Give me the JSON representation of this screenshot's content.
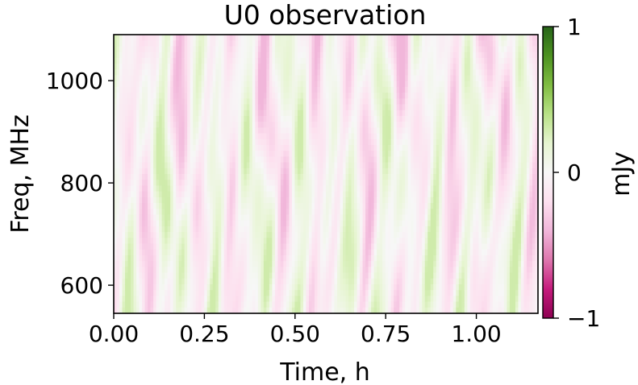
{
  "chart_data": {
    "type": "heatmap",
    "title": "U0 observation",
    "xlabel": "Time, h",
    "ylabel": "Freq, MHz",
    "xlim": [
      0.0,
      1.17
    ],
    "ylim": [
      545,
      1090
    ],
    "x_ticks": [
      0.0,
      0.25,
      0.5,
      0.75,
      1.0
    ],
    "x_tick_labels": [
      "0.00",
      "0.25",
      "0.50",
      "0.75",
      "1.00"
    ],
    "y_ticks": [
      600,
      800,
      1000
    ],
    "y_tick_labels": [
      "600",
      "800",
      "1000"
    ],
    "colorbar": {
      "label": "mJy",
      "vmin": -1,
      "vmax": 1,
      "ticks": [
        -1,
        0,
        1
      ],
      "tick_labels": [
        "−1",
        "0",
        "1"
      ],
      "colormap": "PiYG"
    },
    "colors": {
      "negative": "#8e0152",
      "zero": "#f7f7f7",
      "positive": "#276419"
    },
    "value_range_observed": [
      -0.4,
      0.3
    ]
  }
}
